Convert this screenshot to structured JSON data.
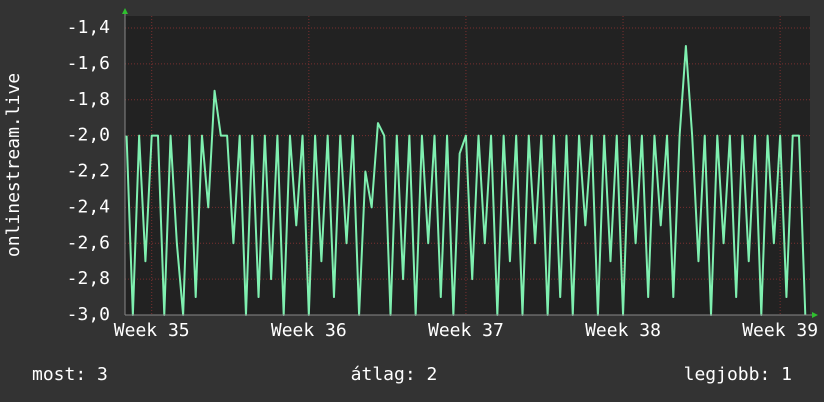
{
  "chart_data": {
    "type": "line",
    "y_label": "onlinestream.live",
    "x": [
      34.84,
      34.88,
      34.92,
      34.96,
      35.0,
      35.04,
      35.08,
      35.12,
      35.16,
      35.2,
      35.24,
      35.28,
      35.32,
      35.36,
      35.4,
      35.44,
      35.48,
      35.52,
      35.56,
      35.6,
      35.64,
      35.68,
      35.72,
      35.76,
      35.8,
      35.84,
      35.88,
      35.92,
      35.96,
      36.0,
      36.04,
      36.08,
      36.12,
      36.16,
      36.2,
      36.24,
      36.28,
      36.32,
      36.36,
      36.4,
      36.44,
      36.48,
      36.52,
      36.56,
      36.6,
      36.64,
      36.68,
      36.72,
      36.76,
      36.8,
      36.84,
      36.88,
      36.92,
      36.96,
      37.0,
      37.04,
      37.08,
      37.12,
      37.16,
      37.2,
      37.24,
      37.28,
      37.32,
      37.36,
      37.4,
      37.44,
      37.48,
      37.52,
      37.56,
      37.6,
      37.64,
      37.68,
      37.72,
      37.76,
      37.8,
      37.84,
      37.88,
      37.92,
      37.96,
      38.0,
      38.04,
      38.08,
      38.12,
      38.16,
      38.2,
      38.24,
      38.28,
      38.32,
      38.36,
      38.4,
      38.44,
      38.48,
      38.52,
      38.56,
      38.6,
      38.64,
      38.68,
      38.72,
      38.76,
      38.8,
      38.84,
      38.88,
      38.92,
      38.96,
      39.0,
      39.04,
      39.08,
      39.12,
      39.16
    ],
    "series": [
      {
        "color": "#7ff0b0",
        "values": [
          -2.0,
          -3.0,
          -2.0,
          -2.7,
          -2.0,
          -2.0,
          -3.0,
          -2.0,
          -2.6,
          -3.0,
          -2.0,
          -2.9,
          -2.0,
          -2.4,
          -1.75,
          -2.0,
          -2.0,
          -2.6,
          -2.0,
          -3.0,
          -2.0,
          -2.9,
          -2.0,
          -2.8,
          -2.0,
          -3.0,
          -2.0,
          -2.5,
          -2.0,
          -3.0,
          -2.0,
          -2.7,
          -2.0,
          -2.9,
          -2.0,
          -2.6,
          -2.0,
          -3.0,
          -2.2,
          -2.4,
          -1.93,
          -2.0,
          -3.0,
          -2.0,
          -2.8,
          -2.0,
          -3.0,
          -2.0,
          -2.6,
          -2.0,
          -2.9,
          -2.0,
          -3.0,
          -2.1,
          -2.0,
          -2.8,
          -2.0,
          -2.6,
          -2.0,
          -3.0,
          -2.0,
          -2.7,
          -2.0,
          -3.0,
          -2.0,
          -2.6,
          -2.0,
          -3.0,
          -2.0,
          -2.9,
          -2.0,
          -3.0,
          -2.0,
          -2.5,
          -2.0,
          -3.0,
          -2.0,
          -2.7,
          -2.0,
          -3.0,
          -2.0,
          -2.6,
          -2.0,
          -2.9,
          -2.0,
          -2.5,
          -2.0,
          -2.9,
          -2.0,
          -1.5,
          -2.0,
          -2.7,
          -2.0,
          -3.0,
          -2.0,
          -2.6,
          -2.0,
          -2.9,
          -2.0,
          -2.7,
          -2.0,
          -3.0,
          -2.0,
          -2.6,
          -2.0,
          -2.9,
          -2.0,
          -2.0,
          -3.0
        ]
      }
    ],
    "xlim": [
      34.83,
      39.19
    ],
    "xticks": [
      {
        "value": 35,
        "label": "Week 35"
      },
      {
        "value": 36,
        "label": "Week 36"
      },
      {
        "value": 37,
        "label": "Week 37"
      },
      {
        "value": 38,
        "label": "Week 38"
      },
      {
        "value": 39,
        "label": "Week 39"
      }
    ],
    "ylim": [
      -3.0,
      -1.333
    ],
    "yticks": [
      {
        "value": -3.0,
        "label": "-3,0"
      },
      {
        "value": -2.8,
        "label": "-2,8"
      },
      {
        "value": -2.6,
        "label": "-2,6"
      },
      {
        "value": -2.4,
        "label": "-2,4"
      },
      {
        "value": -2.2,
        "label": "-2,2"
      },
      {
        "value": -2.0,
        "label": "-2,0"
      },
      {
        "value": -1.8,
        "label": "-1,8"
      },
      {
        "value": -1.6,
        "label": "-1,6"
      },
      {
        "value": -1.4,
        "label": "-1,4"
      }
    ],
    "grid": true,
    "summary": [
      "most: 3",
      "átlag: 2",
      "legjobb: 1"
    ]
  }
}
